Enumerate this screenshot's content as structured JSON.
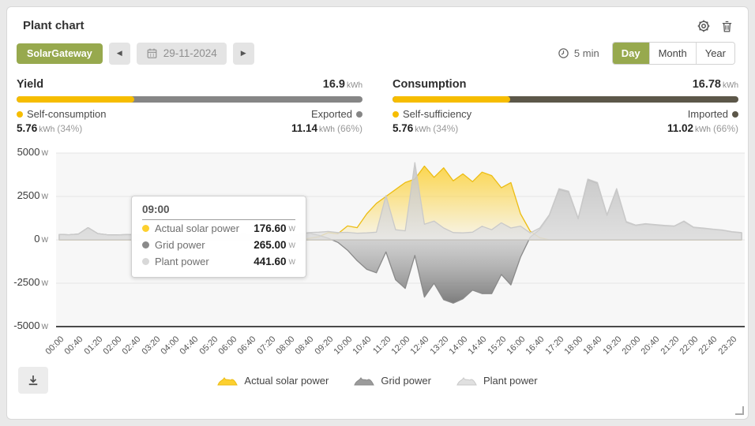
{
  "header": {
    "title": "Plant chart"
  },
  "toolbar": {
    "gateway_label": "SolarGateway",
    "date": "29-11-2024",
    "interval": "5 min",
    "views": [
      "Day",
      "Month",
      "Year"
    ],
    "active_view": "Day",
    "accent_green": "#97a94e"
  },
  "stats": {
    "yield": {
      "label": "Yield",
      "total": "16.9",
      "total_unit": "kWh",
      "left_label": "Self-consumption",
      "left_value": "5.76",
      "left_unit": "kWh",
      "left_pct": "(34%)",
      "right_label": "Exported",
      "right_value": "11.14",
      "right_unit": "kWh",
      "right_pct": "(66%)",
      "bar_pct": 34,
      "bar_color": "#f6bd00",
      "track_color": "#868686"
    },
    "consumption": {
      "label": "Consumption",
      "total": "16.78",
      "total_unit": "kWh",
      "left_label": "Self-sufficiency",
      "left_value": "5.76",
      "left_unit": "kWh",
      "left_pct": "(34%)",
      "right_label": "Imported",
      "right_value": "11.02",
      "right_unit": "kWh",
      "right_pct": "(66%)",
      "bar_pct": 34,
      "bar_color": "#f6bd00",
      "track_color": "#5c5749"
    }
  },
  "tooltip": {
    "time": "09:00",
    "rows": [
      {
        "label": "Actual solar power",
        "value": "176.60",
        "unit": "W",
        "color": "#fdd02f"
      },
      {
        "label": "Grid power",
        "value": "265.00",
        "unit": "W",
        "color": "#8a8a8a"
      },
      {
        "label": "Plant power",
        "value": "441.60",
        "unit": "W",
        "color": "#d8d8d8"
      }
    ]
  },
  "chart_data": {
    "type": "area",
    "title": "",
    "x_start_min": 0,
    "x_step_min": 20,
    "x_tick_labels": [
      "00:00",
      "00:40",
      "01:20",
      "02:00",
      "02:40",
      "03:20",
      "04:00",
      "04:40",
      "05:20",
      "06:00",
      "06:40",
      "07:20",
      "08:00",
      "08:40",
      "09:20",
      "10:00",
      "10:40",
      "11:20",
      "12:00",
      "12:40",
      "13:20",
      "14:00",
      "14:40",
      "15:20",
      "16:00",
      "16:40",
      "17:20",
      "18:00",
      "18:40",
      "19:20",
      "20:00",
      "20:40",
      "21:20",
      "22:00",
      "22:40",
      "23:20"
    ],
    "y_ticks": [
      5000,
      2500,
      0,
      -2500,
      -5000
    ],
    "y_unit": "W",
    "ylim": [
      -5000,
      5000
    ],
    "grid": true,
    "legend_position": "bottom",
    "series": [
      {
        "name": "Actual solar power",
        "color": "#fcd23c",
        "stroke": "#ecbd14",
        "legend_fill": "#fdd02f",
        "values": [
          0,
          0,
          0,
          0,
          0,
          0,
          0,
          0,
          0,
          0,
          0,
          0,
          0,
          0,
          0,
          0,
          0,
          0,
          0,
          0,
          0,
          0,
          0,
          0,
          0,
          0,
          80,
          176.6,
          420,
          350,
          800,
          700,
          1500,
          2100,
          2500,
          2900,
          3300,
          3500,
          4250,
          3600,
          4150,
          3400,
          3800,
          3350,
          3900,
          3700,
          3000,
          3300,
          1500,
          500,
          120,
          0,
          0,
          0,
          0,
          0,
          0,
          0,
          0,
          0,
          0,
          0,
          0,
          0,
          0,
          0,
          0,
          0,
          0,
          0,
          0,
          0
        ]
      },
      {
        "name": "Grid power",
        "color": "#8f8f8f",
        "stroke": "#8a8a8a",
        "legend_fill": "#9b9b9b",
        "values": [
          310,
          290,
          330,
          700,
          360,
          290,
          280,
          300,
          290,
          280,
          285,
          290,
          300,
          290,
          280,
          295,
          310,
          300,
          320,
          340,
          330,
          340,
          330,
          320,
          330,
          340,
          380,
          265,
          90,
          -150,
          -600,
          -1200,
          -1700,
          -1900,
          -700,
          -2300,
          -2800,
          -900,
          -3300,
          -2500,
          -3450,
          -3650,
          -3400,
          -2900,
          -3100,
          -3100,
          -2000,
          -2600,
          -1000,
          150,
          600,
          1400,
          2900,
          2750,
          1200,
          3450,
          3250,
          1400,
          2900,
          1000,
          820,
          900,
          850,
          800,
          780,
          1050,
          700,
          650,
          600,
          550,
          450,
          400
        ]
      },
      {
        "name": "Plant power",
        "color": "#dadada",
        "stroke": "#c9c9c9",
        "legend_fill": "#e0e0e0",
        "values": [
          310,
          290,
          330,
          700,
          360,
          290,
          280,
          300,
          290,
          280,
          285,
          290,
          300,
          290,
          280,
          295,
          310,
          300,
          320,
          340,
          330,
          340,
          330,
          320,
          330,
          340,
          420,
          441.6,
          480,
          420,
          430,
          380,
          400,
          440,
          2550,
          580,
          520,
          4450,
          900,
          1080,
          680,
          420,
          400,
          440,
          780,
          580,
          980,
          680,
          790,
          400,
          680,
          1450,
          2950,
          2800,
          1250,
          3500,
          3300,
          1450,
          2950,
          1050,
          850,
          930,
          880,
          830,
          800,
          1080,
          730,
          680,
          620,
          570,
          470,
          420
        ]
      }
    ]
  }
}
